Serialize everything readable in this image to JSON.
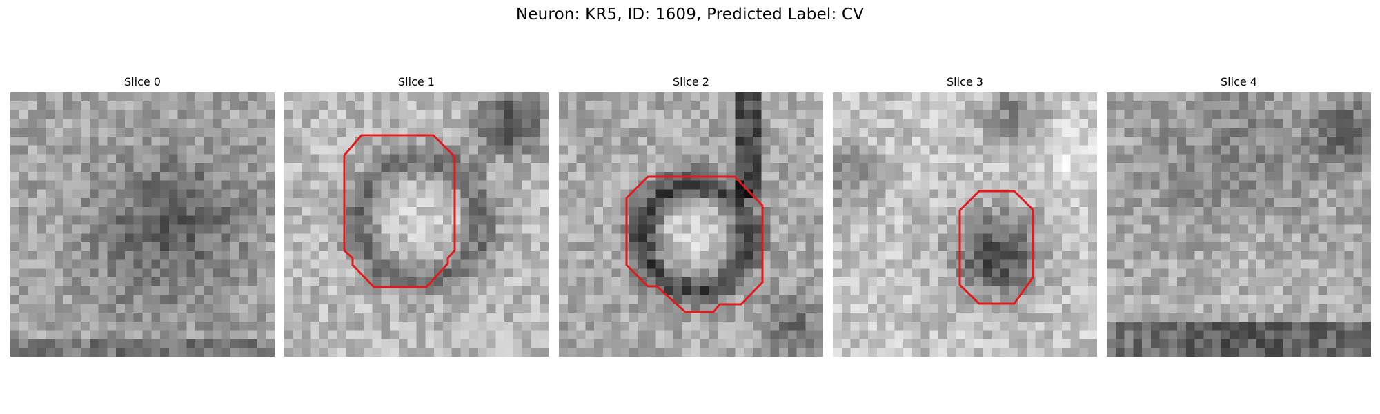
{
  "figure": {
    "title": "Neuron: KR5, ID: 1609, Predicted Label: CV"
  },
  "panels": [
    {
      "title": "Slice 0",
      "has_contour": false
    },
    {
      "title": "Slice 1",
      "has_contour": true
    },
    {
      "title": "Slice 2",
      "has_contour": true
    },
    {
      "title": "Slice 3",
      "has_contour": true
    },
    {
      "title": "Slice 4",
      "has_contour": false
    }
  ],
  "colors": {
    "contour": "#e31a1c",
    "colormap": "gray"
  }
}
